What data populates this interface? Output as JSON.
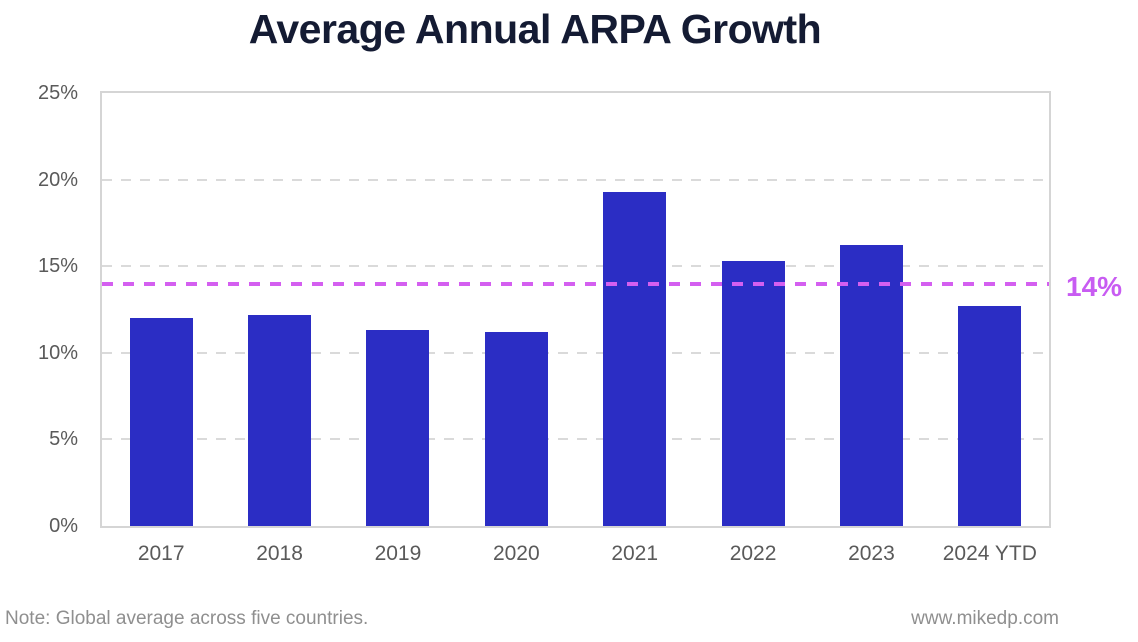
{
  "page": {
    "title": "Average Annual ARPA Growth",
    "note": "Note: Global average across five countries.",
    "website": "www.mikedp.com"
  },
  "chart_data": {
    "type": "bar",
    "title": "Average Annual ARPA Growth",
    "categories": [
      "2017",
      "2018",
      "2019",
      "2020",
      "2021",
      "2022",
      "2023",
      "2024 YTD"
    ],
    "values": [
      12.0,
      12.2,
      11.3,
      11.2,
      19.3,
      15.3,
      16.2,
      12.7
    ],
    "unit": "%",
    "xlabel": "",
    "ylabel": "",
    "ylim": [
      0,
      25
    ],
    "yticks": [
      0,
      5,
      10,
      15,
      20,
      25
    ],
    "ytick_labels": [
      "0%",
      "5%",
      "10%",
      "15%",
      "20%",
      "25%"
    ],
    "grid": "horizontal-dashed",
    "legend": "none",
    "reference_line": {
      "value": 14,
      "label": "14%",
      "style": "dashed"
    },
    "note": "Note: Global average across five countries.",
    "source": "www.mikedp.com"
  },
  "colors": {
    "bar": "#2b2dc4",
    "reference_line": "#d45ff0",
    "reference_label": "#c85cf2",
    "title": "#141b33",
    "axis_text": "#5a5a5a",
    "grid": "#dadada",
    "plot_border": "#d5d5d5",
    "footer_text": "#8f8f8f",
    "background": "#ffffff"
  }
}
